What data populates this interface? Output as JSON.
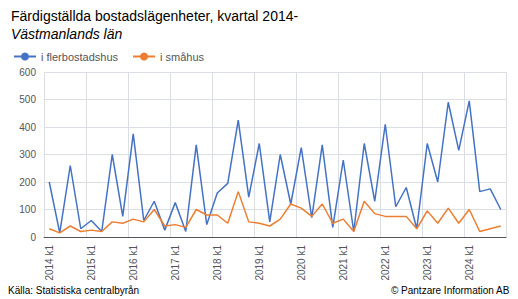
{
  "chart_data": {
    "type": "line",
    "title": "Färdigställda bostadslägenheter, kvartal 2014-",
    "subtitle": "Västmanlands län",
    "annotations": [
      "Källa: Statistiska centralbyrån",
      "© Pantzare Information AB"
    ],
    "categories": [
      "2014 k1",
      null,
      null,
      null,
      "2015 k1",
      null,
      null,
      null,
      "2016 k1",
      null,
      null,
      null,
      "2017 k1",
      null,
      null,
      null,
      "2018 k1",
      null,
      null,
      null,
      "2019 k1",
      null,
      null,
      null,
      "2020 k1",
      null,
      null,
      null,
      "2021 k1",
      null,
      null,
      null,
      "2022 k1",
      null,
      null,
      null,
      "2023 k1",
      null,
      null,
      null,
      "2024 k1",
      null,
      null,
      null
    ],
    "series": [
      {
        "name": "i flerbostadshus",
        "color": "#4472C4",
        "values": [
          200,
          15,
          260,
          30,
          60,
          20,
          300,
          75,
          375,
          60,
          130,
          25,
          125,
          20,
          335,
          45,
          160,
          195,
          425,
          145,
          340,
          55,
          300,
          120,
          325,
          70,
          335,
          35,
          280,
          20,
          340,
          130,
          410,
          110,
          180,
          30,
          340,
          200,
          490,
          315,
          495,
          165,
          175,
          100
        ]
      },
      {
        "name": "i småhus",
        "color": "#ED7D31",
        "values": [
          30,
          15,
          40,
          20,
          25,
          20,
          55,
          50,
          65,
          55,
          100,
          40,
          45,
          35,
          100,
          80,
          80,
          50,
          165,
          55,
          50,
          40,
          65,
          120,
          105,
          75,
          120,
          50,
          65,
          20,
          130,
          85,
          75,
          75,
          75,
          30,
          95,
          50,
          105,
          50,
          100,
          20,
          30,
          40
        ]
      }
    ],
    "ylim": [
      0,
      600
    ],
    "yticks": [
      0,
      100,
      200,
      300,
      400,
      500,
      600
    ],
    "grid": true,
    "legend": "upper left"
  }
}
